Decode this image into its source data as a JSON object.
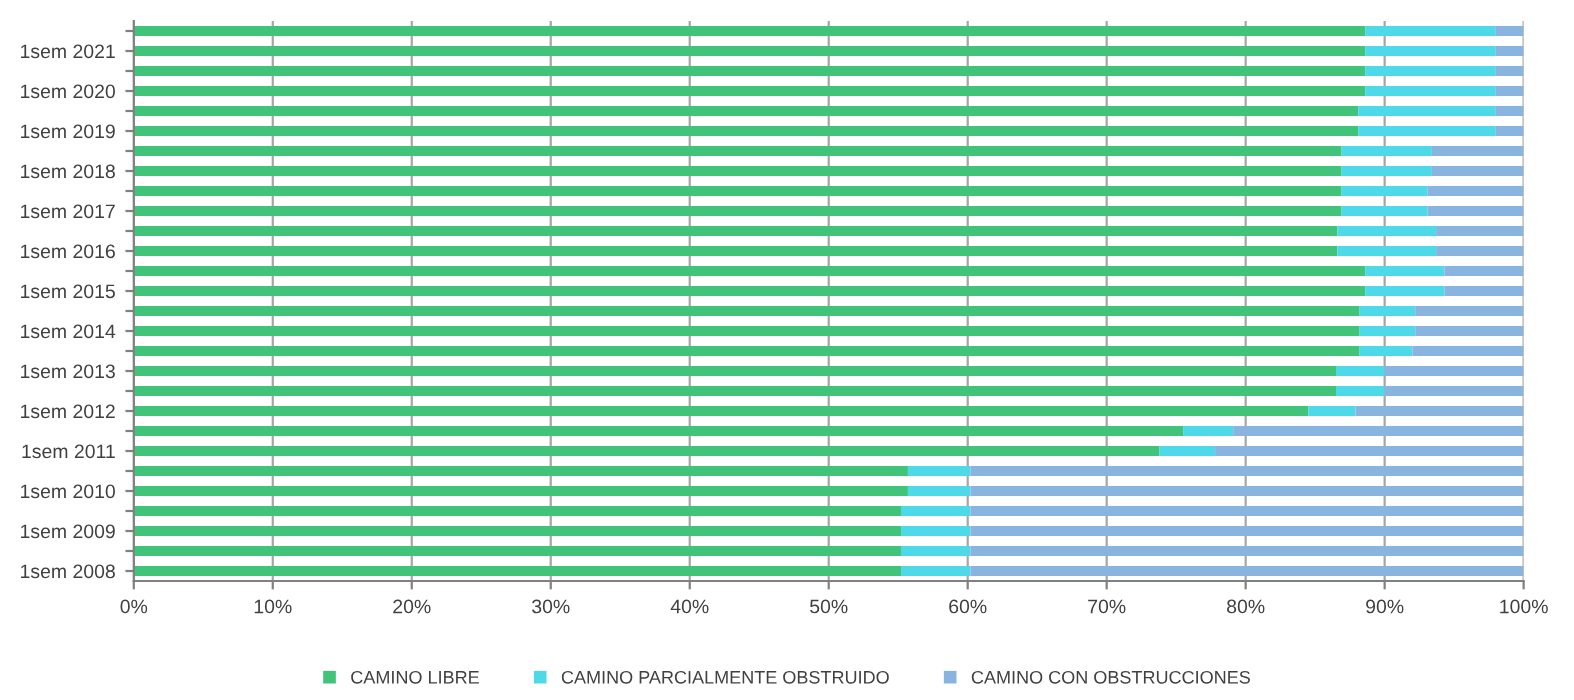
{
  "chart_data": {
    "type": "bar",
    "orientation": "horizontal",
    "stacked": true,
    "categories": [
      null,
      "1sem 2021",
      null,
      "1sem 2020",
      null,
      "1sem 2019",
      null,
      "1sem 2018",
      null,
      "1sem 2017",
      null,
      "1sem 2016",
      null,
      "1sem 2015",
      null,
      "1sem 2014",
      null,
      "1sem 2013",
      null,
      "1sem 2012",
      null,
      "1sem 2011",
      null,
      "1sem 2010",
      null,
      "1sem 2009",
      null,
      "1sem 2008"
    ],
    "series": [
      {
        "name": "CAMINO LIBRE",
        "color": "#41c37a",
        "values": [
          88.6,
          88.6,
          88.6,
          88.6,
          88.1,
          88.1,
          86.9,
          86.9,
          86.9,
          86.9,
          86.6,
          86.6,
          88.6,
          88.6,
          88.2,
          88.2,
          88.2,
          86.5,
          86.5,
          84.5,
          75.5,
          73.8,
          55.7,
          55.7,
          55.2,
          55.2,
          55.2,
          55.2
        ]
      },
      {
        "name": "CAMINO PARCIALMENTE OBSTRUIDO",
        "color": "#4dd9e8",
        "values": [
          9.4,
          9.4,
          9.4,
          9.4,
          9.9,
          9.9,
          6.5,
          6.5,
          6.2,
          6.2,
          7.1,
          7.1,
          5.7,
          5.7,
          4.0,
          4.0,
          3.8,
          3.5,
          3.5,
          3.4,
          3.6,
          4.0,
          4.5,
          4.5,
          5.0,
          5.0,
          5.0,
          5.0
        ]
      },
      {
        "name": "CAMINO CON OBSTRUCCIONES",
        "color": "#8ab4e0",
        "values": [
          2.0,
          2.0,
          2.0,
          2.0,
          2.0,
          2.0,
          6.6,
          6.6,
          6.9,
          6.9,
          6.3,
          6.3,
          5.7,
          5.7,
          7.8,
          7.8,
          8.0,
          10.0,
          10.0,
          12.1,
          20.9,
          22.2,
          39.8,
          39.8,
          39.8,
          39.8,
          39.8,
          39.8
        ]
      }
    ],
    "xlim": [
      0,
      100
    ],
    "xticks": [
      {
        "value": 0,
        "label": "0%"
      },
      {
        "value": 10,
        "label": "10%"
      },
      {
        "value": 20,
        "label": "20%"
      },
      {
        "value": 30,
        "label": "30%"
      },
      {
        "value": 40,
        "label": "40%"
      },
      {
        "value": 50,
        "label": "50%"
      },
      {
        "value": 60,
        "label": "60%"
      },
      {
        "value": 70,
        "label": "70%"
      },
      {
        "value": 80,
        "label": "80%"
      },
      {
        "value": 90,
        "label": "90%"
      },
      {
        "value": 100,
        "label": "100%"
      }
    ],
    "grid": "x",
    "legend": "bottom"
  }
}
